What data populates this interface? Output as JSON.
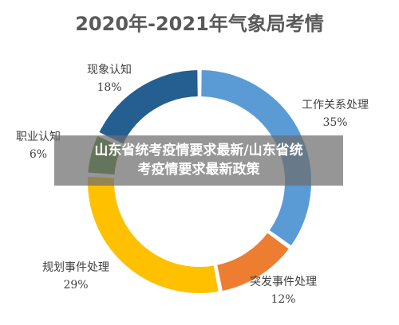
{
  "chart_data": {
    "type": "pie",
    "title": "2020年-2021年气象局考情",
    "categories": [
      "工作关系处理",
      "突发事件处理",
      "规划事件处理",
      "职业认知",
      "现象认知"
    ],
    "values": [
      35,
      12,
      29,
      6,
      18
    ],
    "value_labels": [
      "35%",
      "12%",
      "29%",
      "6%",
      "18%"
    ],
    "colors": [
      "#5b9bd5",
      "#ed7d31",
      "#ffc000",
      "#4d8a2f",
      "#255e91"
    ],
    "legend": "none",
    "style": "doughnut"
  },
  "overlay": {
    "line1": "山东省统考疫情要求最新/山东省统",
    "line2": "考疫情要求最新政策"
  }
}
